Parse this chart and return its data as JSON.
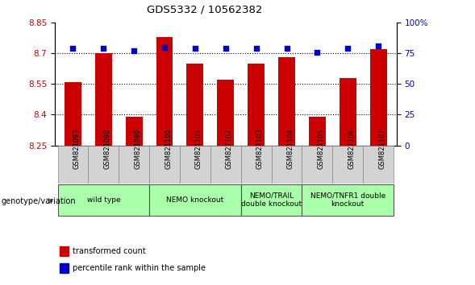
{
  "title": "GDS5332 / 10562382",
  "samples": [
    "GSM821097",
    "GSM821098",
    "GSM821099",
    "GSM821100",
    "GSM821101",
    "GSM821102",
    "GSM821103",
    "GSM821104",
    "GSM821105",
    "GSM821106",
    "GSM821107"
  ],
  "bar_values": [
    8.56,
    8.7,
    8.39,
    8.78,
    8.65,
    8.57,
    8.65,
    8.68,
    8.39,
    8.58,
    8.72
  ],
  "percentile_values": [
    79,
    79,
    77,
    80,
    79,
    79,
    79,
    79,
    76,
    79,
    81
  ],
  "ylim_left": [
    8.25,
    8.85
  ],
  "ylim_right": [
    0,
    100
  ],
  "yticks_left": [
    8.25,
    8.4,
    8.55,
    8.7,
    8.85
  ],
  "yticks_right": [
    0,
    25,
    50,
    75,
    100
  ],
  "ytick_labels_right": [
    "0",
    "25",
    "50",
    "75",
    "100%"
  ],
  "dotted_lines": [
    8.4,
    8.55,
    8.7
  ],
  "bar_color": "#cc0000",
  "percentile_color": "#0000cc",
  "tick_label_color_left": "#cc0000",
  "tick_label_color_right": "#0000cc",
  "sample_box_color": "#d3d3d3",
  "groups": [
    {
      "label": "wild type",
      "start": 0,
      "end": 2,
      "color": "#aaffaa"
    },
    {
      "label": "NEMO knockout",
      "start": 3,
      "end": 5,
      "color": "#aaffaa"
    },
    {
      "label": "NEMO/TRAIL\ndouble knockout",
      "start": 6,
      "end": 7,
      "color": "#aaffaa"
    },
    {
      "label": "NEMO/TNFR1 double\nknockout",
      "start": 8,
      "end": 10,
      "color": "#aaffaa"
    }
  ],
  "legend_bar_label": "transformed count",
  "legend_pct_label": "percentile rank within the sample",
  "genotype_label": "genotype/variation"
}
